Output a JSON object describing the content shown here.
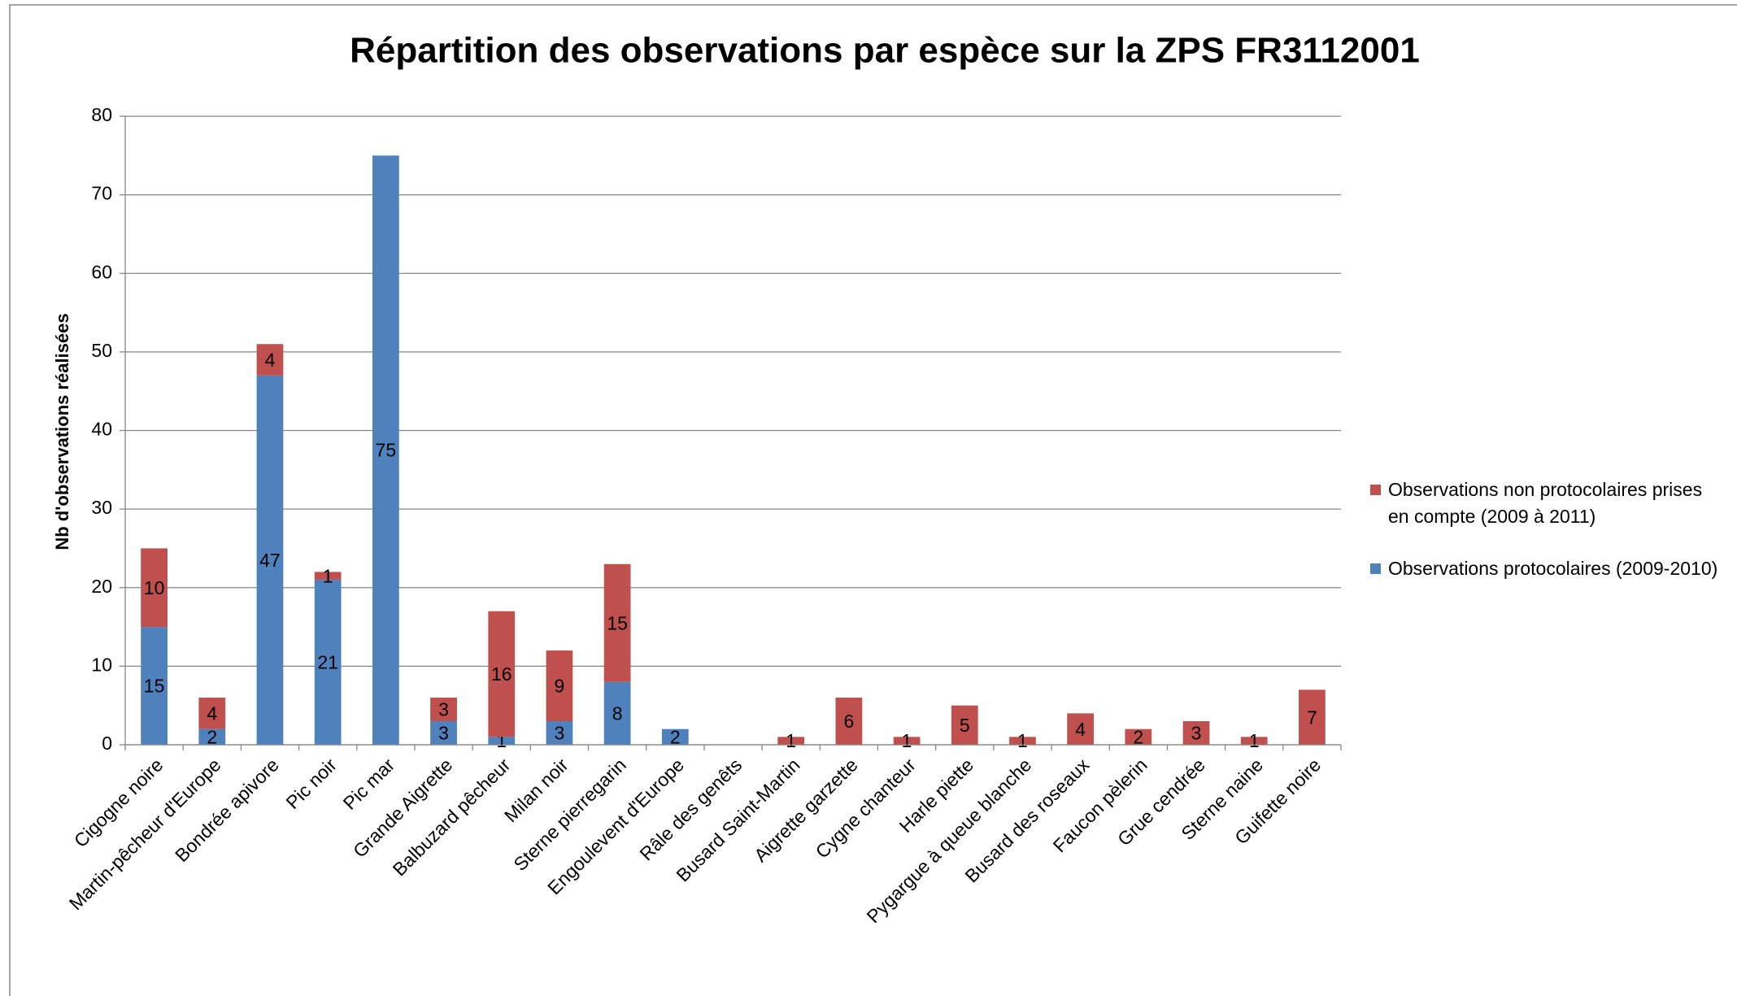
{
  "chart_data": {
    "type": "bar",
    "stacked": true,
    "title": "Répartition des observations par espèce sur la ZPS FR3112001",
    "y_label": "Nb d'observations réalisées",
    "categories": [
      "Cigogne noire",
      "Martin-pêcheur d'Europe",
      "Bondrée apivore",
      "Pic noir",
      "Pic mar",
      "Grande Aigrette",
      "Balbuzard pêcheur",
      "Milan noir",
      "Sterne pierregarin",
      "Engoulevent d'Europe",
      "Râle des genêts",
      "Busard Saint-Martin",
      "Aigrette garzette",
      "Cygne chanteur",
      "Harle piette",
      "Pygargue à queue blanche",
      "Busard des roseaux",
      "Faucon pèlerin",
      "Grue cendrée",
      "Sterne naine",
      "Guifette noire"
    ],
    "series": [
      {
        "name": "Observations protocolaires (2009-2010)",
        "color": "#4f81bd",
        "values": [
          15,
          2,
          47,
          21,
          75,
          3,
          1,
          3,
          8,
          2,
          null,
          null,
          null,
          null,
          null,
          null,
          null,
          null,
          null,
          null,
          null
        ]
      },
      {
        "name": "Observations non protocolaires prises en compte (2009 à 2011)",
        "color": "#c0504d",
        "values": [
          10,
          4,
          4,
          1,
          null,
          3,
          16,
          9,
          15,
          null,
          null,
          1,
          6,
          1,
          5,
          1,
          4,
          2,
          3,
          1,
          7
        ]
      }
    ],
    "ylim": [
      0,
      80
    ],
    "yticks": [
      0,
      10,
      20,
      30,
      40,
      50,
      60,
      70,
      80
    ],
    "grid": true,
    "legend": "right"
  }
}
